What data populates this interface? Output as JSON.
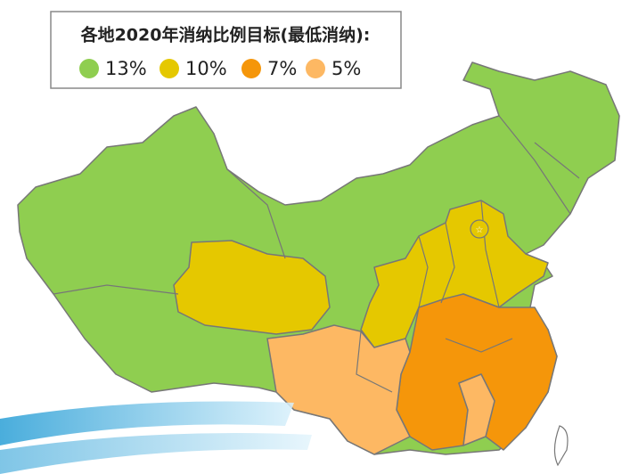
{
  "legend": {
    "title": "各地2020年消纳比例目标(最低消纳):",
    "items": [
      {
        "label": "13%",
        "color": "#8fce50"
      },
      {
        "label": "10%",
        "color": "#e5c800"
      },
      {
        "label": "7%",
        "color": "#f5960a"
      },
      {
        "label": "5%",
        "color": "#fdb863"
      }
    ]
  }
}
